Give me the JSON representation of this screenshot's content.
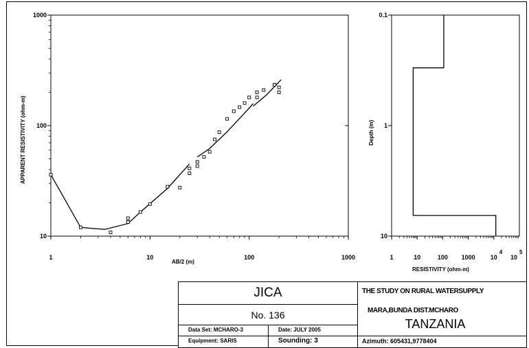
{
  "chart_data": [
    {
      "type": "scatter",
      "xlabel": "AB/2 (m)",
      "ylabel": "APPARENT RESISTIVITY (ohm-m)",
      "xscale": "log",
      "yscale": "log",
      "xlim": [
        1,
        1000
      ],
      "ylim": [
        10,
        1000
      ],
      "x_ticks": [
        "1",
        "10",
        "100",
        "1000"
      ],
      "y_ticks": [
        "10",
        "100",
        "1000"
      ],
      "observed": {
        "x": [
          1,
          2,
          4,
          6,
          6,
          8,
          10,
          15,
          20,
          25,
          25,
          30,
          30,
          35,
          40,
          45,
          50,
          60,
          70,
          80,
          90,
          100,
          120,
          120,
          140,
          180,
          200,
          200
        ],
        "y": [
          36,
          12,
          10.8,
          13.4,
          14.5,
          16.5,
          19.5,
          28,
          27.5,
          37,
          41,
          43,
          47,
          52,
          58,
          75,
          87,
          115,
          135,
          147,
          160,
          180,
          180,
          200,
          210,
          235,
          200,
          222
        ]
      },
      "fitted_curve": [
        [
          [
            1,
            36
          ],
          [
            2,
            12
          ],
          [
            3.5,
            11.5
          ],
          [
            6,
            13
          ],
          [
            8,
            16.5
          ],
          [
            15,
            27
          ],
          [
            25,
            45
          ]
        ],
        [
          [
            30,
            52
          ],
          [
            40,
            62
          ],
          [
            60,
            88
          ],
          [
            90,
            130
          ],
          [
            110,
            158
          ]
        ],
        [
          [
            110,
            150
          ],
          [
            150,
            190
          ],
          [
            210,
            260
          ]
        ]
      ]
    },
    {
      "type": "line",
      "xlabel": "RESISTIVITY (ohm-m)",
      "ylabel": "Depth (m)",
      "xscale": "log",
      "yscale": "log",
      "xlim": [
        1,
        100000
      ],
      "ylim": [
        0.1,
        10
      ],
      "x_ticks": [
        "1",
        "10",
        "100",
        "1000",
        "10",
        "4",
        "10",
        "5"
      ],
      "y_ticks": [
        "0.1",
        "1",
        "10"
      ],
      "layers": [
        {
          "resistivity": 110,
          "top": 0.1,
          "bottom": 0.3
        },
        {
          "resistivity": 7,
          "top": 0.3,
          "bottom": 6.5
        },
        {
          "resistivity": 12000,
          "top": 6.5,
          "bottom": 10
        }
      ]
    }
  ],
  "title_block": {
    "org": "JICA",
    "number": "No. 136",
    "data_set": "Data Set: MCHARO-3",
    "date": "Date: JULY 2005",
    "equipment": "Equipment: SARIS",
    "sounding": "Sounding: 3",
    "study": "THE STUDY ON RURAL WATERSUPPLY",
    "location": "MARA,BUNDA DIST.MCHARO",
    "country": "TANZANIA",
    "azimuth": "Azimuth: 605431,9778404"
  }
}
